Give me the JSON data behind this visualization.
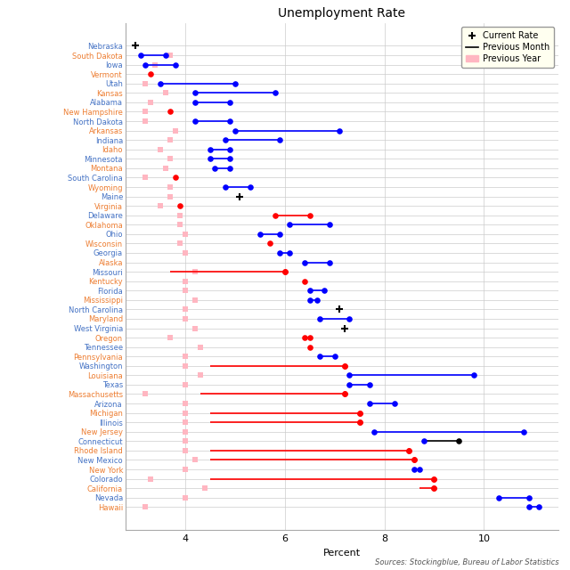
{
  "title": "Unemployment Rate",
  "xlabel": "Percent",
  "source_text": "Sources: Stockingblue, Bureau of Labor Statistics",
  "xlim": [
    2.8,
    11.5
  ],
  "xticks": [
    4,
    6,
    8,
    10
  ],
  "prev_year_color": "#ffb6c1",
  "grid_color": "#cccccc",
  "bg_color": "#ffffff",
  "label_colors_even": "#4472c4",
  "label_colors_odd": "#ed7d31",
  "chart_data": [
    [
      "Nebraska",
      3.0,
      null,
      null,
      null,
      "black",
      null
    ],
    [
      "South Dakota",
      3.1,
      3.1,
      3.6,
      "blue",
      "blue",
      3.7
    ],
    [
      "Iowa",
      3.2,
      3.2,
      3.8,
      "blue",
      "blue",
      3.4
    ],
    [
      "Vermont",
      3.3,
      null,
      null,
      null,
      "red",
      null
    ],
    [
      "Utah",
      3.5,
      3.5,
      5.0,
      "blue",
      "blue",
      3.2
    ],
    [
      "Kansas",
      4.2,
      4.2,
      5.8,
      "blue",
      "blue",
      3.6
    ],
    [
      "Alabama",
      4.2,
      4.2,
      4.9,
      "blue",
      "blue",
      3.3
    ],
    [
      "New Hampshire",
      3.7,
      null,
      null,
      null,
      "red",
      3.2
    ],
    [
      "North Dakota",
      4.2,
      4.2,
      4.9,
      "blue",
      "blue",
      3.2
    ],
    [
      "Arkansas",
      5.0,
      5.0,
      7.1,
      "blue",
      "blue",
      3.8
    ],
    [
      "Indiana",
      4.8,
      4.8,
      5.9,
      "blue",
      "blue",
      3.7
    ],
    [
      "Idaho",
      4.5,
      4.5,
      4.9,
      "blue",
      "blue",
      3.5
    ],
    [
      "Minnesota",
      4.5,
      4.5,
      4.9,
      "blue",
      "blue",
      3.7
    ],
    [
      "Montana",
      4.6,
      4.6,
      4.9,
      "blue",
      "blue",
      3.6
    ],
    [
      "South Carolina",
      3.8,
      null,
      null,
      null,
      "red",
      3.2
    ],
    [
      "Wyoming",
      4.8,
      4.8,
      5.3,
      "blue",
      "blue",
      3.7
    ],
    [
      "Maine",
      5.1,
      null,
      null,
      null,
      "black",
      3.7
    ],
    [
      "Virginia",
      3.9,
      null,
      null,
      null,
      "red",
      3.5
    ],
    [
      "Delaware",
      5.8,
      5.8,
      6.5,
      "red",
      "red",
      3.9
    ],
    [
      "Oklahoma",
      6.1,
      6.1,
      6.9,
      "blue",
      "blue",
      3.9
    ],
    [
      "Ohio",
      5.5,
      5.5,
      5.9,
      "blue",
      "blue",
      4.0
    ],
    [
      "Wisconsin",
      5.7,
      null,
      null,
      null,
      "red",
      3.9
    ],
    [
      "Georgia",
      5.9,
      5.9,
      6.1,
      "blue",
      "blue",
      4.0
    ],
    [
      "Alaska",
      6.4,
      6.4,
      6.9,
      "blue",
      "blue",
      null
    ],
    [
      "Missouri",
      6.0,
      3.7,
      6.0,
      "red",
      "red",
      4.2
    ],
    [
      "Kentucky",
      6.4,
      null,
      null,
      null,
      "red",
      4.0
    ],
    [
      "Florida",
      6.5,
      6.5,
      6.8,
      "blue",
      "blue",
      4.0
    ],
    [
      "Mississippi",
      6.5,
      6.5,
      6.65,
      "blue",
      "blue",
      4.2
    ],
    [
      "North Carolina",
      7.1,
      null,
      null,
      null,
      "black",
      4.0
    ],
    [
      "Maryland",
      6.7,
      6.7,
      7.3,
      "blue",
      "blue",
      4.0
    ],
    [
      "West Virginia",
      7.2,
      null,
      null,
      null,
      "black",
      4.2
    ],
    [
      "Oregon",
      6.4,
      6.4,
      6.5,
      "red",
      "red",
      3.7
    ],
    [
      "Tennessee",
      6.5,
      null,
      null,
      null,
      "red",
      4.3
    ],
    [
      "Pennsylvania",
      6.7,
      6.7,
      7.0,
      "blue",
      "blue",
      4.0
    ],
    [
      "Washington",
      7.2,
      4.5,
      7.2,
      "red",
      "red",
      4.0
    ],
    [
      "Louisiana",
      7.3,
      7.3,
      9.8,
      "blue",
      "blue",
      4.3
    ],
    [
      "Texas",
      7.3,
      7.3,
      7.7,
      "blue",
      "blue",
      4.0
    ],
    [
      "Massachusetts",
      7.2,
      4.3,
      7.2,
      "red",
      "red",
      3.2
    ],
    [
      "Arizona",
      7.7,
      7.7,
      8.2,
      "blue",
      "blue",
      4.0
    ],
    [
      "Michigan",
      7.5,
      4.5,
      7.5,
      "red",
      "red",
      4.0
    ],
    [
      "Illinois",
      7.5,
      4.5,
      7.5,
      "red",
      "red",
      4.0
    ],
    [
      "New Jersey",
      7.8,
      7.8,
      10.8,
      "blue",
      "blue",
      4.0
    ],
    [
      "Connecticut",
      8.8,
      8.8,
      9.5,
      "black",
      "blue",
      4.0
    ],
    [
      "Rhode Island",
      8.5,
      4.5,
      8.5,
      "red",
      "red",
      4.0
    ],
    [
      "New Mexico",
      8.6,
      4.5,
      8.6,
      "red",
      "red",
      4.2
    ],
    [
      "New York",
      8.6,
      8.6,
      8.7,
      "blue",
      "blue",
      4.0
    ],
    [
      "Colorado",
      9.0,
      4.5,
      9.0,
      "red",
      "red",
      3.3
    ],
    [
      "California",
      9.0,
      8.7,
      9.0,
      "red",
      "red",
      4.4
    ],
    [
      "Nevada",
      10.3,
      10.3,
      10.9,
      "blue",
      "blue",
      4.0
    ],
    [
      "Hawaii",
      10.9,
      10.9,
      11.1,
      "blue",
      "blue",
      3.2
    ]
  ]
}
